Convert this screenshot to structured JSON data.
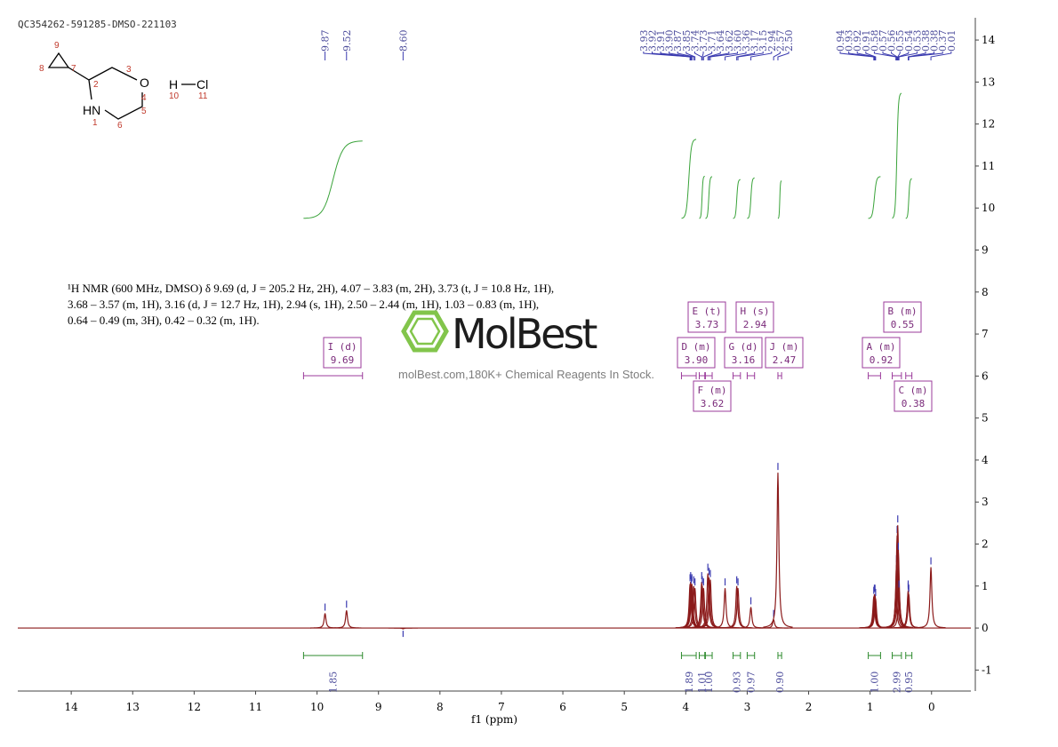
{
  "chart_data": {
    "type": "nmr",
    "title": "QC354262-591285-DMSO-221103",
    "xlabel": "f1 (ppm)",
    "xlim": [
      14.87,
      -0.64
    ],
    "ylim": [
      -1.5,
      14.53
    ],
    "xticks": [
      14,
      13,
      12,
      11,
      10,
      9,
      8,
      7,
      6,
      5,
      4,
      3,
      2,
      1,
      0
    ],
    "yticks": [
      -1,
      0,
      1,
      2,
      3,
      4,
      5,
      6,
      7,
      8,
      9,
      10,
      11,
      12,
      13,
      14
    ],
    "series": [
      {
        "color": "#8b1a1a",
        "x": [
          9.87,
          9.52,
          {
            "value": 8.6,
            "label": "8.60"
          },
          3.93,
          3.92,
          3.91,
          {
            "value": 3.9,
            "label": "3.90"
          },
          3.87,
          3.85,
          3.74,
          3.73,
          3.71,
          3.64,
          3.62,
          {
            "value": 3.6,
            "label": "3.60"
          },
          3.36,
          3.17,
          3.15,
          2.94,
          2.57,
          {
            "value": 2.5,
            "label": "2.50"
          },
          0.94,
          0.93,
          0.92,
          0.91,
          0.58,
          0.57,
          0.56,
          0.55,
          0.54,
          0.53,
          0.38,
          0.38,
          0.37,
          0.01
        ],
        "values": [
          0.35,
          0.42,
          -0.02,
          1.05,
          1.1,
          1.0,
          1.05,
          1.0,
          0.95,
          1.1,
          1.0,
          0.95,
          1.3,
          1.2,
          1.15,
          0.95,
          1.0,
          0.95,
          0.5,
          0.2,
          3.7,
          0.75,
          0.8,
          0.8,
          0.7,
          0.85,
          1.5,
          2.2,
          2.45,
          1.8,
          0.9,
          0.85,
          0.9,
          0.8,
          1.45
        ]
      }
    ],
    "integrals": [
      {
        "from": 10.22,
        "to": 9.26,
        "value": 1.85
      },
      {
        "from": 4.07,
        "to": 3.83,
        "value": 1.89
      },
      {
        "from": 3.78,
        "to": 3.69,
        "value": 1.01
      },
      {
        "from": 3.68,
        "to": 3.57,
        "value": {
          "value": 1,
          "label": "1.00"
        }
      },
      {
        "from": 3.23,
        "to": 3.11,
        "value": 0.93
      },
      {
        "from": 3.0,
        "to": 2.88,
        "value": 0.97
      },
      {
        "from": 2.5,
        "to": 2.44,
        "value": {
          "value": 0.9,
          "label": "0.90"
        }
      },
      {
        "from": 1.03,
        "to": 0.83,
        "value": {
          "value": 1,
          "label": "1.00"
        }
      },
      {
        "from": 0.64,
        "to": 0.49,
        "value": 2.99
      },
      {
        "from": 0.42,
        "to": 0.32,
        "value": 0.95
      }
    ],
    "multiplets": [
      {
        "label": "I (d)",
        "shift": 9.69
      },
      {
        "label": "E (t)",
        "shift": 3.73
      },
      {
        "label": "H (s)",
        "shift": 2.94
      },
      {
        "label": "D (m)",
        "shift": {
          "value": 3.9,
          "label": "3.90"
        }
      },
      {
        "label": "G (d)",
        "shift": 3.16
      },
      {
        "label": "J (m)",
        "shift": 2.47
      },
      {
        "label": "F (m)",
        "shift": 3.62
      },
      {
        "label": "A (m)",
        "shift": 0.92
      },
      {
        "label": "B (m)",
        "shift": 0.55
      },
      {
        "label": "C (m)",
        "shift": 0.38
      }
    ],
    "description": [
      "¹H NMR (600 MHz, DMSO) δ 9.69 (d, J = 205.2 Hz, 2H), 4.07 – 3.83 (m, 2H), 3.73 (t, J = 10.8 Hz, 1H),",
      "3.68 – 3.57 (m, 1H), 3.16 (d, J = 12.7 Hz, 1H), 2.94 (s, 1H), 2.50 – 2.44 (m, 1H), 1.03 – 0.83 (m, 1H),",
      "0.64 – 0.49 (m, 3H), 0.42 – 0.32 (m, 1H)."
    ]
  },
  "structure": {
    "labels": [
      "9",
      "8",
      "7",
      "2",
      "3",
      "O",
      "4",
      "5",
      "6",
      "HN",
      "1",
      "H",
      "Cl",
      "10",
      "11"
    ]
  },
  "watermark": {
    "brand": "MolBest",
    "tagline": "molBest.com,180K+ Chemical Reagents In Stock."
  }
}
